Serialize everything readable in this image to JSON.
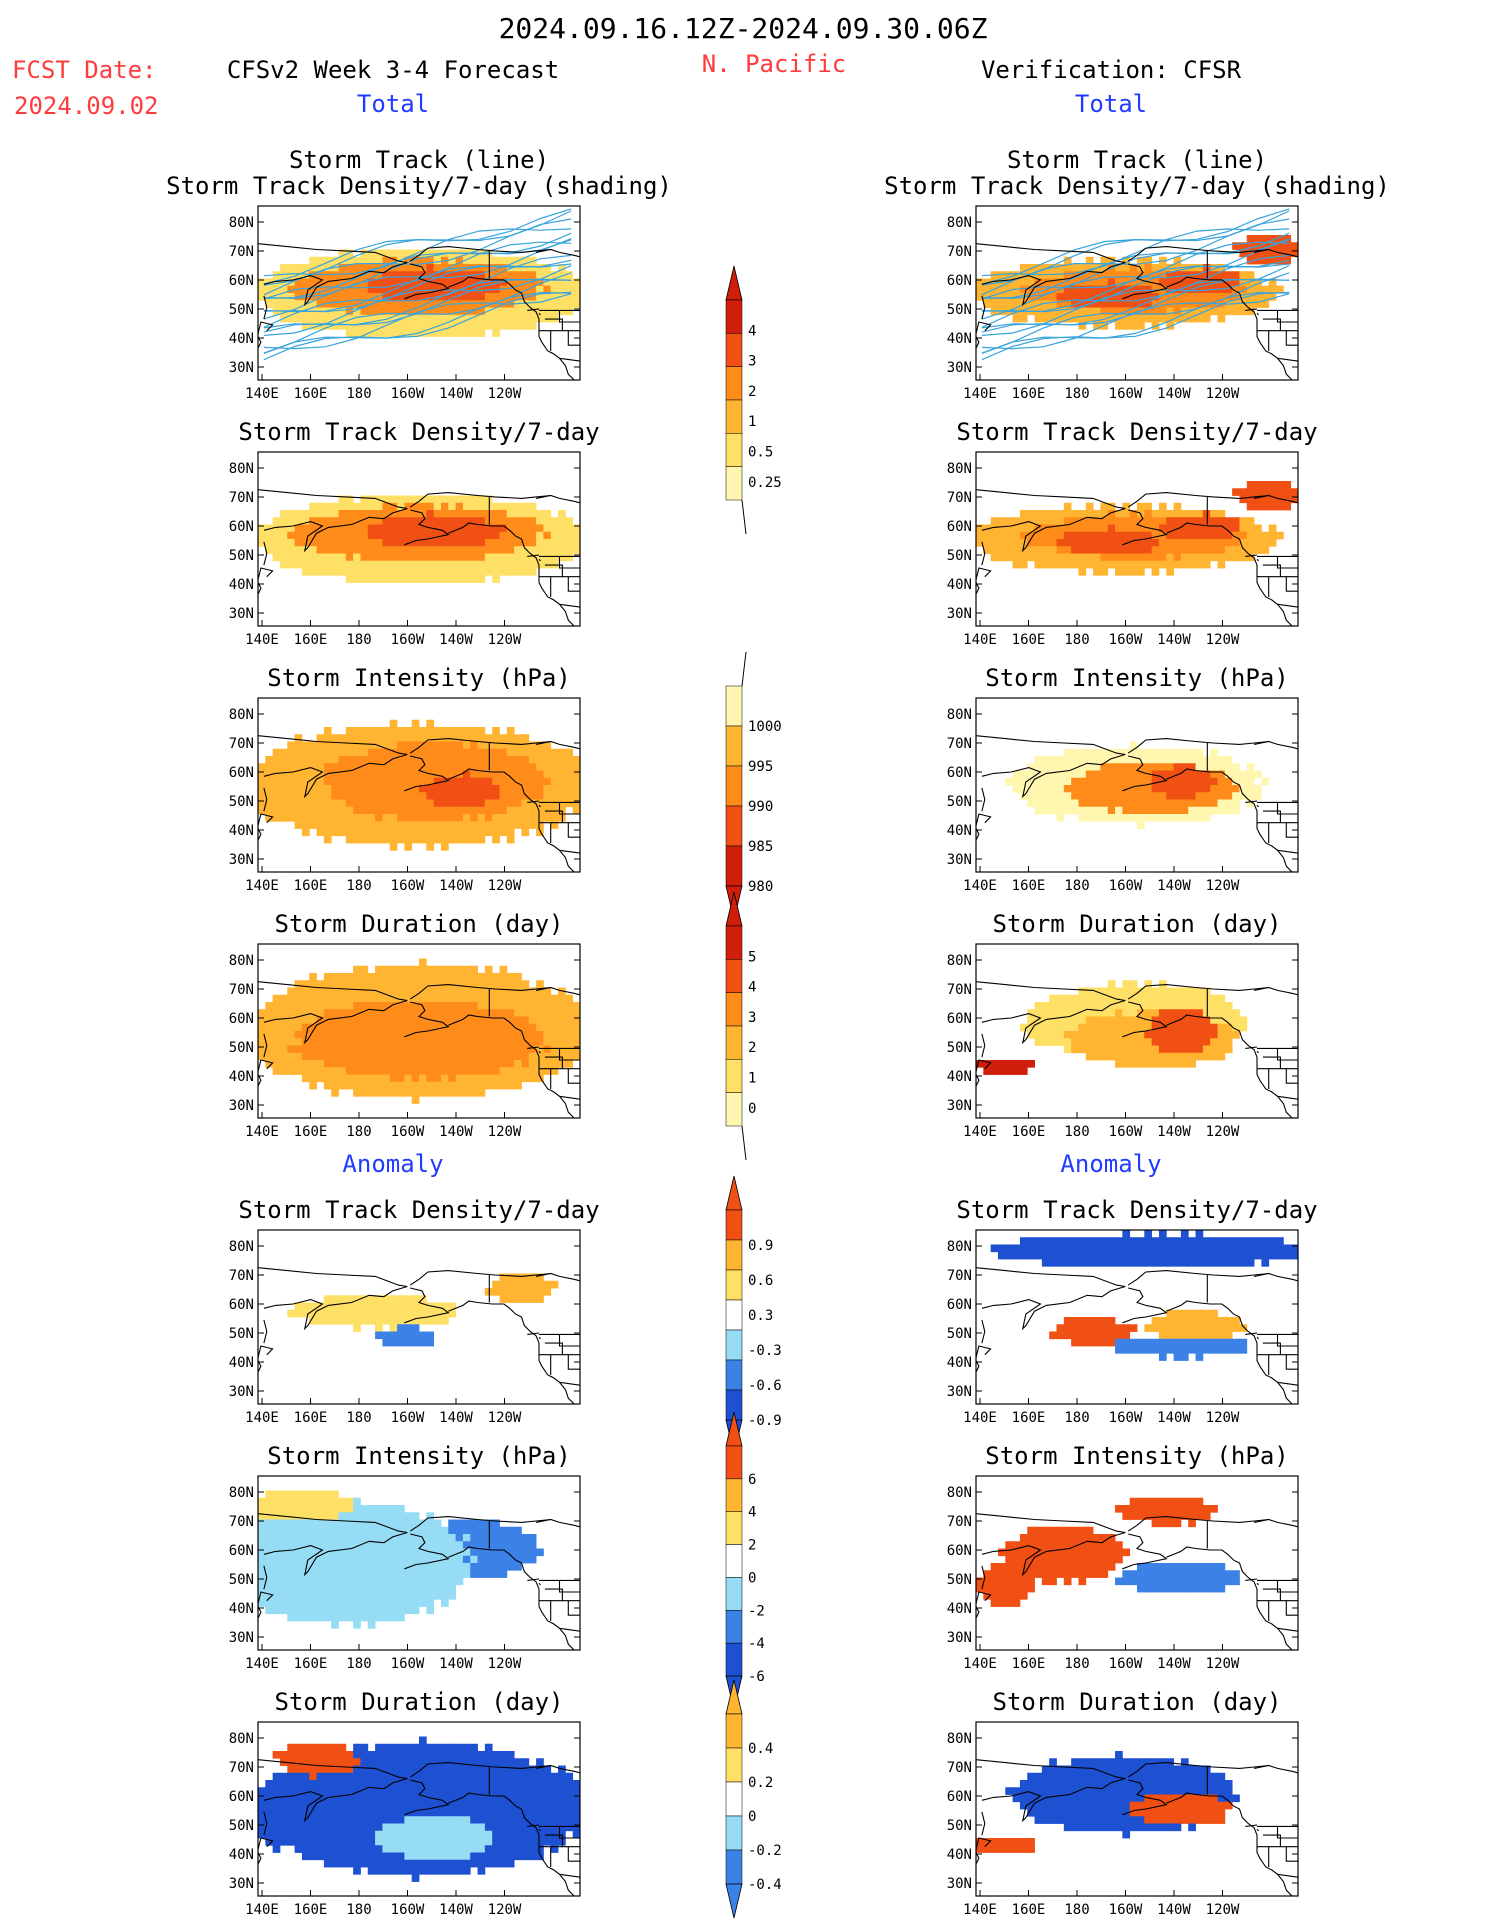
{
  "header": {
    "period": "2024.09.16.12Z-2024.09.30.06Z",
    "fcst_label": "FCST Date:",
    "fcst_date": "2024.09.02",
    "model": "CFSv2 Week 3-4 Forecast",
    "region": "N. Pacific",
    "verification": "Verification: CFSR"
  },
  "sections": {
    "total_left": "Total",
    "total_right": "Total",
    "anomaly_left": "Anomaly",
    "anomaly_right": "Anomaly"
  },
  "panel_titles": {
    "storm_track_line": "Storm Track (line)",
    "storm_track_shading": "Storm Track Density/7-day (shading)",
    "density": "Storm Track Density/7-day",
    "intensity": "Storm Intensity (hPa)",
    "duration": "Storm Duration (day)"
  },
  "axis_ticks": {
    "lat": [
      "80N",
      "70N",
      "60N",
      "50N",
      "40N",
      "30N"
    ],
    "lon": [
      "140E",
      "160E",
      "180",
      "160W",
      "140W",
      "120W"
    ]
  },
  "colors": {
    "title_red": "#ff3b3b",
    "section_blue": "#1f3cff",
    "track_line": "#38a4dc",
    "track_highlight": "#ff4fae",
    "shade_yellow_light": "#fff7b0",
    "shade_yellow": "#ffe066",
    "shade_orange_light": "#ffb432",
    "shade_orange": "#ff8c1a",
    "shade_red_orange": "#f05014",
    "shade_red": "#d01e0a",
    "shade_dark_red": "#a00808",
    "shade_blue_light": "#cdf0fa",
    "shade_blue_pale": "#96dcf5",
    "shade_blue": "#5aaaf0",
    "shade_blue_mid": "#3c82e6",
    "shade_blue_dark": "#1e50d2"
  },
  "colorbars": {
    "density_total": [
      "0.25",
      "0.5",
      "1",
      "2",
      "3",
      "4"
    ],
    "intensity_total": [
      "1000",
      "995",
      "990",
      "985",
      "980"
    ],
    "duration_total": [
      "0",
      "1",
      "2",
      "3",
      "4",
      "5"
    ],
    "density_anomaly": [
      "0.9",
      "0.6",
      "0.3",
      "-0.3",
      "-0.6",
      "-0.9"
    ],
    "intensity_anomaly": [
      "6",
      "4",
      "2",
      "0",
      "-2",
      "-4",
      "-6"
    ],
    "duration_anomaly": [
      "0.4",
      "0.2",
      "0",
      "-0.2",
      "-0.4"
    ]
  },
  "chart_data": [
    {
      "type": "heatmap",
      "panel": "forecast storm track with density shading",
      "title": "Storm Track (line) / Storm Track Density/7-day (shading)",
      "section": "Total",
      "source": "CFSv2 Week 3-4 Forecast",
      "xticks": [
        "140E",
        "160E",
        "180",
        "160W",
        "140W",
        "120W"
      ],
      "yticks": [
        "80N",
        "70N",
        "60N",
        "50N",
        "40N",
        "30N"
      ],
      "legend_levels": [
        "0.25",
        "0.5",
        "1",
        "2",
        "3",
        "4"
      ]
    },
    {
      "type": "heatmap",
      "panel": "verification storm track with density shading",
      "title": "Storm Track (line) / Storm Track Density/7-day (shading)",
      "section": "Total",
      "source": "CFSR",
      "xticks": [
        "140E",
        "160E",
        "180",
        "160W",
        "140W",
        "120W"
      ],
      "yticks": [
        "80N",
        "70N",
        "60N",
        "50N",
        "40N",
        "30N"
      ],
      "legend_levels": [
        "0.25",
        "0.5",
        "1",
        "2",
        "3",
        "4"
      ]
    },
    {
      "type": "heatmap",
      "panel": "forecast density",
      "title": "Storm Track Density/7-day",
      "section": "Total",
      "source": "CFSv2 Week 3-4 Forecast",
      "legend_levels": [
        "0.25",
        "0.5",
        "1",
        "2",
        "3",
        "4"
      ]
    },
    {
      "type": "heatmap",
      "panel": "verification density",
      "title": "Storm Track Density/7-day",
      "section": "Total",
      "source": "CFSR",
      "legend_levels": [
        "0.25",
        "0.5",
        "1",
        "2",
        "3",
        "4"
      ]
    },
    {
      "type": "heatmap",
      "panel": "forecast intensity",
      "title": "Storm Intensity (hPa)",
      "section": "Total",
      "source": "CFSv2 Week 3-4 Forecast",
      "legend_levels": [
        "1000",
        "995",
        "990",
        "985",
        "980"
      ]
    },
    {
      "type": "heatmap",
      "panel": "verification intensity",
      "title": "Storm Intensity (hPa)",
      "section": "Total",
      "source": "CFSR",
      "legend_levels": [
        "1000",
        "995",
        "990",
        "985",
        "980"
      ]
    },
    {
      "type": "heatmap",
      "panel": "forecast duration",
      "title": "Storm Duration (day)",
      "section": "Total",
      "source": "CFSv2 Week 3-4 Forecast",
      "legend_levels": [
        "0",
        "1",
        "2",
        "3",
        "4",
        "5"
      ]
    },
    {
      "type": "heatmap",
      "panel": "verification duration",
      "title": "Storm Duration (day)",
      "section": "Total",
      "source": "CFSR",
      "legend_levels": [
        "0",
        "1",
        "2",
        "3",
        "4",
        "5"
      ]
    },
    {
      "type": "heatmap",
      "panel": "forecast density anomaly",
      "title": "Storm Track Density/7-day",
      "section": "Anomaly",
      "source": "CFSv2 Week 3-4 Forecast",
      "legend_levels": [
        "0.9",
        "0.6",
        "0.3",
        "-0.3",
        "-0.6",
        "-0.9"
      ]
    },
    {
      "type": "heatmap",
      "panel": "verification density anomaly",
      "title": "Storm Track Density/7-day",
      "section": "Anomaly",
      "source": "CFSR",
      "legend_levels": [
        "0.9",
        "0.6",
        "0.3",
        "-0.3",
        "-0.6",
        "-0.9"
      ]
    },
    {
      "type": "heatmap",
      "panel": "forecast intensity anomaly",
      "title": "Storm Intensity (hPa)",
      "section": "Anomaly",
      "source": "CFSv2 Week 3-4 Forecast",
      "legend_levels": [
        "6",
        "4",
        "2",
        "0",
        "-2",
        "-4",
        "-6"
      ]
    },
    {
      "type": "heatmap",
      "panel": "verification intensity anomaly",
      "title": "Storm Intensity (hPa)",
      "section": "Anomaly",
      "source": "CFSR",
      "legend_levels": [
        "6",
        "4",
        "2",
        "0",
        "-2",
        "-4",
        "-6"
      ]
    },
    {
      "type": "heatmap",
      "panel": "forecast duration anomaly",
      "title": "Storm Duration (day)",
      "section": "Anomaly",
      "source": "CFSv2 Week 3-4 Forecast",
      "legend_levels": [
        "0.4",
        "0.2",
        "0",
        "-0.2",
        "-0.4"
      ]
    },
    {
      "type": "heatmap",
      "panel": "verification duration anomaly",
      "title": "Storm Duration (day)",
      "section": "Anomaly",
      "source": "CFSR",
      "legend_levels": [
        "0.4",
        "0.2",
        "0",
        "-0.2",
        "-0.4"
      ]
    }
  ]
}
